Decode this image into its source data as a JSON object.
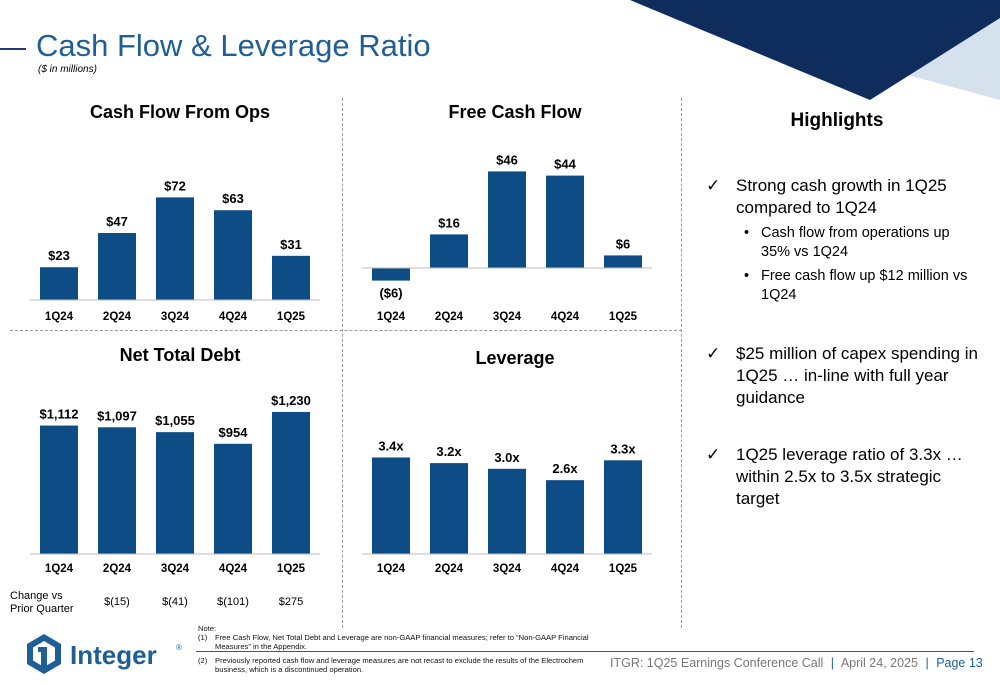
{
  "header": {
    "title": "Cash Flow & Leverage Ratio",
    "subtitle": "($ in millions)"
  },
  "colors": {
    "bar": "#0d4c85",
    "title_blue": "#1f5f95",
    "corner_dark": "#0f2d5c",
    "corner_light": "#d6e1ee"
  },
  "chart_data": [
    {
      "type": "bar",
      "title": "Cash Flow From Ops",
      "categories": [
        "1Q24",
        "2Q24",
        "3Q24",
        "4Q24",
        "1Q25"
      ],
      "values": [
        23,
        47,
        72,
        63,
        31
      ],
      "data_labels": [
        "$23",
        "$47",
        "$72",
        "$63",
        "$31"
      ],
      "ylim": [
        0,
        80
      ],
      "grid": false,
      "legend": "none"
    },
    {
      "type": "bar",
      "title": "Free Cash Flow",
      "categories": [
        "1Q24",
        "2Q24",
        "3Q24",
        "4Q24",
        "1Q25"
      ],
      "values": [
        -6,
        16,
        46,
        44,
        6
      ],
      "data_labels": [
        "($6)",
        "$16",
        "$46",
        "$44",
        "$6"
      ],
      "ylim": [
        -10,
        50
      ],
      "grid": false,
      "legend": "none"
    },
    {
      "type": "bar",
      "title": "Net Total Debt",
      "categories": [
        "1Q24",
        "2Q24",
        "3Q24",
        "4Q24",
        "1Q25"
      ],
      "values": [
        1112,
        1097,
        1055,
        954,
        1230
      ],
      "data_labels": [
        "$1,112",
        "$1,097",
        "$1,055",
        "$954",
        "$1,230"
      ],
      "ylim": [
        0,
        1400
      ],
      "grid": false,
      "legend": "none"
    },
    {
      "type": "bar",
      "title": "Leverage",
      "categories": [
        "1Q24",
        "2Q24",
        "3Q24",
        "4Q24",
        "1Q25"
      ],
      "values": [
        3.4,
        3.2,
        3.0,
        2.6,
        3.3
      ],
      "data_labels": [
        "3.4x",
        "3.2x",
        "3.0x",
        "2.6x",
        "3.3x"
      ],
      "ylim": [
        0,
        4
      ],
      "grid": false,
      "legend": "none"
    }
  ],
  "change_vs_prior": {
    "label_line1": "Change vs",
    "label_line2": "Prior Quarter",
    "values": [
      "$(15)",
      "$(41)",
      "$(101)",
      "$275"
    ]
  },
  "highlights": {
    "title": "Highlights",
    "check": "✓",
    "bullet": "•",
    "item1": "Strong cash growth in 1Q25 compared to 1Q24",
    "sub1": "Cash flow from operations up 35% vs 1Q24",
    "sub2": "Free cash flow up $12 million vs 1Q24",
    "item2": "$25 million of capex spending in 1Q25 … in-line with full year guidance",
    "item3": "1Q25 leverage ratio of 3.3x … within 2.5x to 3.5x strategic target"
  },
  "notes": {
    "heading": "Note:",
    "n1_num": "(1)",
    "n1_text": "Free Cash Flow, Net Total Debt and Leverage are non-GAAP financial measures; refer to “Non-GAAP Financial Measures” in the Appendix.",
    "n2_num": "(2)",
    "n2_text": "Previously reported cash flow and leverage measures are not recast to exclude the results of the Electrochem business, which is a discontinued operation."
  },
  "footer": {
    "event": "ITGR: 1Q25 Earnings Conference Call",
    "sep": "|",
    "date": "April 24, 2025",
    "page": "Page 13"
  },
  "logo": {
    "wordmark": "Integer",
    "reg": "®",
    "icon": "integer-logo-icon"
  }
}
